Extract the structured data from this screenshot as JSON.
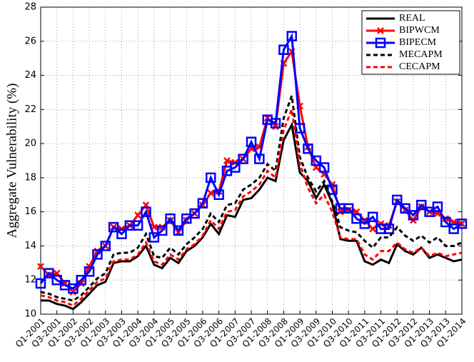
{
  "chart_data": {
    "type": "line",
    "ylabel": "Aggregate Vulnerability (%)",
    "categories": [
      "Q1-2001",
      null,
      "Q3-2001",
      null,
      "Q1-2002",
      null,
      "Q3-2002",
      null,
      "Q1-2003",
      null,
      "Q3-2003",
      null,
      "Q1-2004",
      null,
      "Q3-2004",
      null,
      "Q1-2005",
      null,
      "Q3-2005",
      null,
      "Q1-2006",
      null,
      "Q3-2006",
      null,
      "Q1-2007",
      null,
      "Q3-2007",
      null,
      "Q1-2008",
      null,
      "Q3-2008",
      null,
      "Q1-2009",
      null,
      "Q3-2009",
      null,
      "Q1-2010",
      null,
      "Q3-2010",
      null,
      "Q1-2011",
      null,
      "Q3-2011",
      null,
      "Q1-2012",
      null,
      "Q3-2012",
      null,
      "Q1-2013",
      null,
      "Q3-2013",
      null,
      "Q1-2014"
    ],
    "ylim": [
      10,
      28
    ],
    "yticks": [
      10,
      12,
      14,
      16,
      18,
      20,
      22,
      24,
      26,
      28
    ],
    "grid": true,
    "legend": "upper right",
    "series": [
      {
        "name": "REAL",
        "color": "#000000",
        "dash": false,
        "marker": null,
        "values": [
          10.8,
          10.8,
          10.6,
          10.5,
          10.3,
          10.7,
          11.2,
          11.7,
          11.9,
          13.0,
          13.1,
          13.1,
          13.4,
          14.0,
          12.9,
          12.7,
          13.3,
          13.0,
          13.7,
          14.0,
          14.5,
          15.3,
          14.7,
          15.8,
          15.7,
          16.7,
          16.8,
          17.3,
          18.0,
          17.8,
          20.2,
          21.1,
          18.3,
          17.8,
          16.8,
          17.6,
          16.5,
          14.4,
          14.3,
          14.3,
          13.1,
          12.9,
          13.2,
          13.0,
          14.1,
          13.7,
          13.5,
          13.9,
          13.3,
          13.5,
          13.3,
          13.1,
          13.2
        ]
      },
      {
        "name": "BIPWCM",
        "color": "#ff0000",
        "dash": false,
        "marker": "x",
        "values": [
          12.8,
          12.3,
          12.4,
          11.8,
          11.3,
          11.8,
          12.8,
          13.7,
          14.0,
          15.1,
          15.0,
          15.2,
          15.8,
          16.4,
          15.1,
          15.1,
          15.5,
          14.8,
          15.5,
          15.9,
          16.4,
          17.1,
          17.2,
          19.0,
          18.9,
          19.1,
          19.7,
          19.8,
          21.5,
          21.0,
          24.7,
          25.4,
          22.2,
          19.8,
          18.6,
          18.2,
          17.6,
          16.0,
          16.1,
          16.0,
          15.5,
          15.0,
          15.3,
          15.2,
          16.6,
          16.1,
          15.5,
          16.3,
          16.0,
          15.9,
          15.6,
          15.4,
          15.3
        ]
      },
      {
        "name": "BIPECM",
        "color": "#0000ff",
        "dash": false,
        "marker": "square",
        "values": [
          11.8,
          12.4,
          12.0,
          11.7,
          11.5,
          12.0,
          12.5,
          13.5,
          14.0,
          15.1,
          14.7,
          15.2,
          15.2,
          16.0,
          14.5,
          14.9,
          15.6,
          14.9,
          15.6,
          15.9,
          16.5,
          18.0,
          17.0,
          18.4,
          18.6,
          19.1,
          20.1,
          19.1,
          21.4,
          21.2,
          25.5,
          26.3,
          20.9,
          19.7,
          19.0,
          18.6,
          17.3,
          16.2,
          16.2,
          15.6,
          15.3,
          15.7,
          15.0,
          15.0,
          16.7,
          16.2,
          15.8,
          16.4,
          16.0,
          16.3,
          15.4,
          15.0,
          15.3
        ]
      },
      {
        "name": "MECAPM",
        "color": "#000000",
        "dash": true,
        "marker": null,
        "values": [
          11.3,
          11.2,
          11.0,
          10.9,
          10.8,
          11.1,
          11.6,
          12.1,
          12.4,
          13.5,
          13.6,
          13.6,
          13.9,
          14.7,
          13.4,
          13.3,
          13.9,
          13.5,
          14.1,
          14.5,
          15.0,
          15.9,
          15.4,
          16.4,
          16.5,
          17.3,
          17.6,
          18.0,
          18.8,
          18.4,
          21.5,
          22.8,
          19.2,
          18.0,
          17.2,
          17.8,
          16.6,
          15.1,
          14.9,
          14.8,
          14.3,
          13.9,
          14.5,
          14.5,
          15.1,
          14.6,
          14.3,
          14.6,
          14.2,
          14.5,
          14.0,
          14.0,
          14.2
        ]
      },
      {
        "name": "CECAPM",
        "color": "#ff0000",
        "dash": true,
        "marker": null,
        "values": [
          11.1,
          11.0,
          10.8,
          10.7,
          10.5,
          10.9,
          11.4,
          11.9,
          12.1,
          13.1,
          13.2,
          13.2,
          13.5,
          14.2,
          13.1,
          12.9,
          13.5,
          13.2,
          13.8,
          14.1,
          14.6,
          15.5,
          15.0,
          16.0,
          16.1,
          16.9,
          17.2,
          17.6,
          18.4,
          18.0,
          20.8,
          22.0,
          18.8,
          17.4,
          16.5,
          17.0,
          16.0,
          14.5,
          14.4,
          14.4,
          13.5,
          13.2,
          13.7,
          13.7,
          14.2,
          13.8,
          13.6,
          13.9,
          13.4,
          13.6,
          13.4,
          13.5,
          13.6
        ]
      }
    ]
  }
}
